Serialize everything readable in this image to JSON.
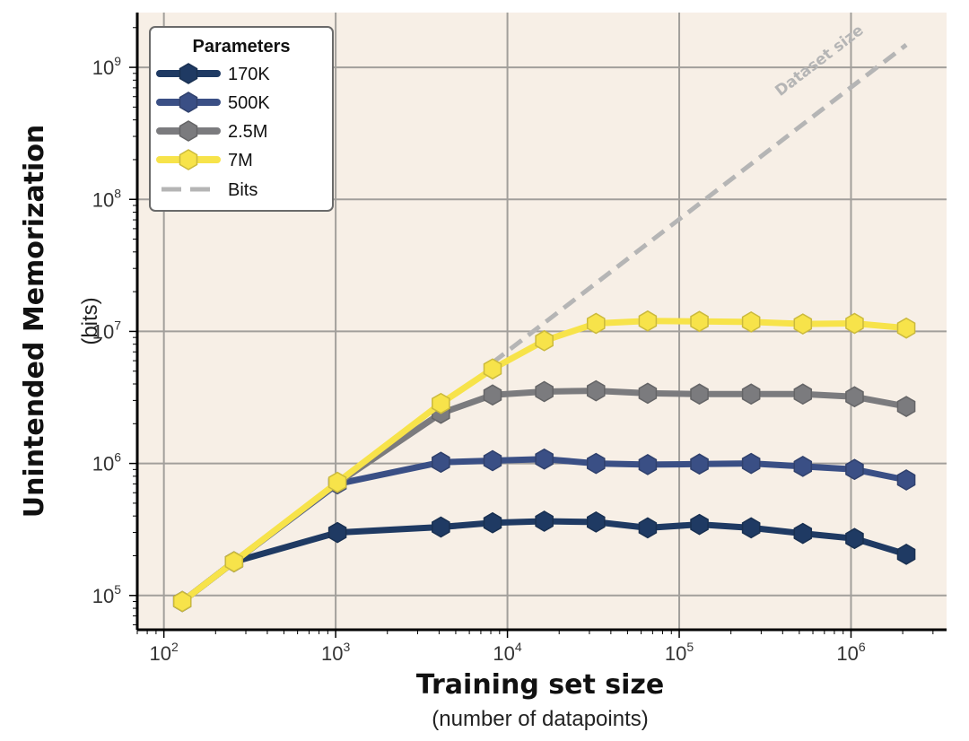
{
  "chart_data": {
    "type": "line",
    "xlabel": "Training set size",
    "xlabel_sub": "(number of datapoints)",
    "ylabel": "Unintended Memorization",
    "ylabel_sub": "(bits)",
    "x_scale": "log",
    "y_scale": "log",
    "xlim": [
      70,
      3600000
    ],
    "ylim": [
      55000,
      2600000000
    ],
    "x_ticks": [
      {
        "value": 100,
        "base": "10",
        "exp": "2"
      },
      {
        "value": 1000,
        "base": "10",
        "exp": "3"
      },
      {
        "value": 10000,
        "base": "10",
        "exp": "4"
      },
      {
        "value": 100000,
        "base": "10",
        "exp": "5"
      },
      {
        "value": 1000000,
        "base": "10",
        "exp": "6"
      }
    ],
    "y_ticks": [
      {
        "value": 100000,
        "base": "10",
        "exp": "5"
      },
      {
        "value": 1000000,
        "base": "10",
        "exp": "6"
      },
      {
        "value": 10000000,
        "base": "10",
        "exp": "7"
      },
      {
        "value": 100000000,
        "base": "10",
        "exp": "8"
      },
      {
        "value": 1000000000,
        "base": "10",
        "exp": "9"
      }
    ],
    "grid": true,
    "background": "#f7efe6",
    "legend": {
      "title": "Parameters",
      "position": "top-left"
    },
    "series": [
      {
        "name": "170K",
        "color": "#1f3a63",
        "marker": "hexagon",
        "x": [
          128,
          256,
          1024,
          4096,
          8192,
          16384,
          32768,
          65536,
          131072,
          262144,
          524288,
          1048576,
          2097152
        ],
        "y": [
          90000,
          180000,
          300000,
          330000,
          355000,
          365000,
          360000,
          325000,
          345000,
          325000,
          295000,
          270000,
          205000
        ]
      },
      {
        "name": "500K",
        "color": "#3a4f85",
        "marker": "hexagon",
        "x": [
          128,
          256,
          1024,
          4096,
          8192,
          16384,
          32768,
          65536,
          131072,
          262144,
          524288,
          1048576,
          2097152
        ],
        "y": [
          90000,
          180000,
          700000,
          1020000,
          1050000,
          1080000,
          1000000,
          980000,
          990000,
          1000000,
          950000,
          900000,
          750000
        ]
      },
      {
        "name": "2.5M",
        "color": "#7b7b7e",
        "marker": "hexagon",
        "x": [
          128,
          256,
          1024,
          4096,
          8192,
          16384,
          32768,
          65536,
          131072,
          262144,
          524288,
          1048576,
          2097152
        ],
        "y": [
          90000,
          180000,
          710000,
          2400000,
          3300000,
          3500000,
          3550000,
          3400000,
          3350000,
          3350000,
          3350000,
          3200000,
          2700000
        ]
      },
      {
        "name": "7M",
        "color": "#f7e34a",
        "marker": "hexagon",
        "x": [
          128,
          256,
          1024,
          4096,
          8192,
          16384,
          32768,
          65536,
          131072,
          262144,
          524288,
          1048576,
          2097152
        ],
        "y": [
          90000,
          180000,
          720000,
          2850000,
          5200000,
          8500000,
          11500000,
          12000000,
          11900000,
          11800000,
          11400000,
          11500000,
          10600000
        ]
      },
      {
        "name": "Bits",
        "color": "#b5b5b5",
        "style": "dashed",
        "x": [
          8192,
          2097152
        ],
        "y": [
          5800000,
          1480000000
        ]
      }
    ],
    "annotations": [
      {
        "text": "Dataset size",
        "color": "#b5b5b5"
      }
    ]
  }
}
